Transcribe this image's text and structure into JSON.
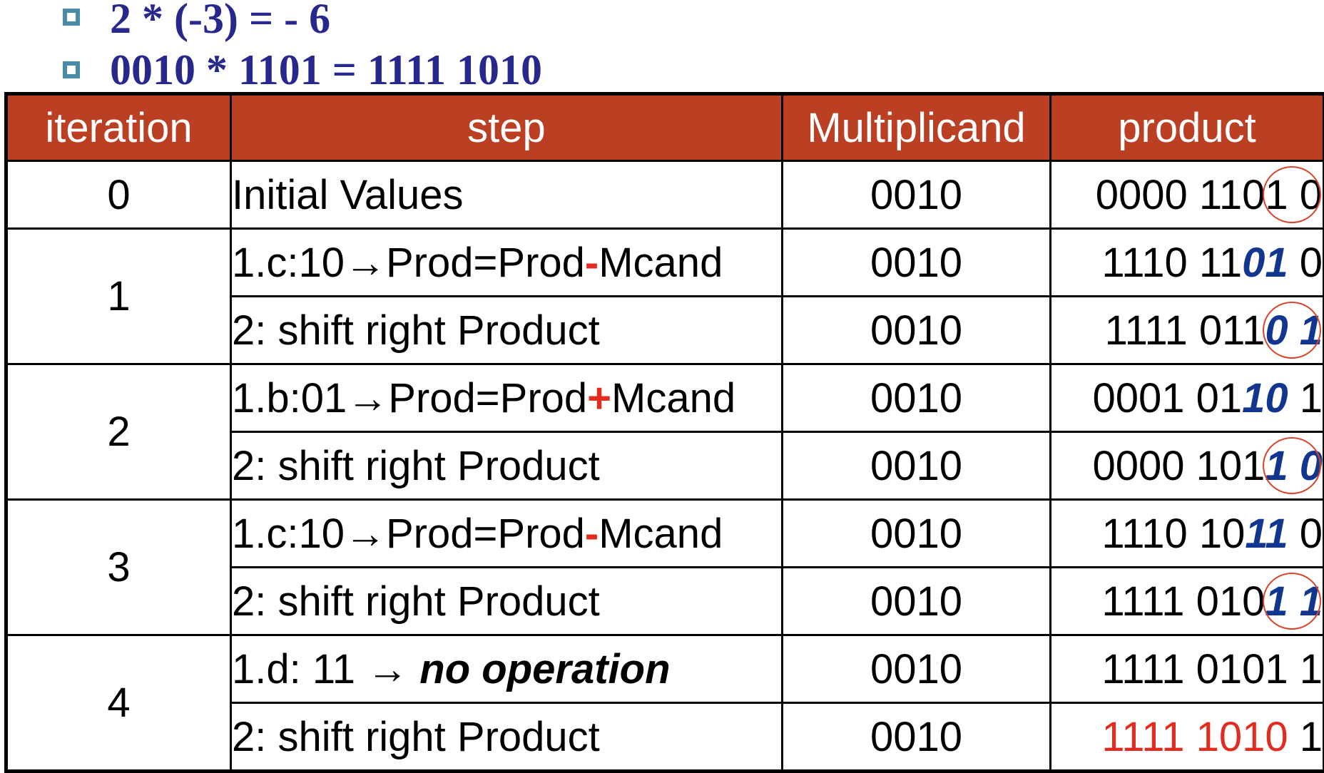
{
  "bullets": [
    "2 * (-3) = - 6",
    "0010 * 1101 = 1111 1010"
  ],
  "table": {
    "headers": [
      "iteration",
      "step",
      "Multiplicand",
      "product"
    ],
    "rows": [
      {
        "iteration": "0",
        "step": "Initial Values",
        "multiplicand": "0010",
        "product": "0000 1101 0"
      },
      {
        "iteration": "1",
        "step_prefix": "1.c:10→Prod=Prod",
        "step_op": "-",
        "step_suffix": "Mcand",
        "multiplicand": "0010",
        "product_prefix": "1110 11",
        "product_bits": "01",
        "product_suffix": " 0"
      },
      {
        "step": "2: shift right Product",
        "multiplicand": "0010",
        "product_prefix": "1111 011",
        "product_bits": "0 1"
      },
      {
        "iteration": "2",
        "step_prefix": "1.b:01→Prod=Prod",
        "step_op": "+",
        "step_suffix": "Mcand",
        "multiplicand": "0010",
        "product_prefix": "0001 01",
        "product_bits": "10",
        "product_suffix": " 1"
      },
      {
        "step": "2: shift right Product",
        "multiplicand": "0010",
        "product_prefix": "0000 101",
        "product_bits": "1 0"
      },
      {
        "iteration": "3",
        "step_prefix": "1.c:10→Prod=Prod",
        "step_op": "-",
        "step_suffix": "Mcand",
        "multiplicand": "0010",
        "product_prefix": "1110 10",
        "product_bits": "11",
        "product_suffix": " 0"
      },
      {
        "step": "2: shift right Product",
        "multiplicand": "0010",
        "product_prefix": "1111 010",
        "product_bits": "1 1"
      },
      {
        "iteration": "4",
        "step_prefix": "1.d: 11 → ",
        "step_emph": "no operation",
        "multiplicand": "0010",
        "product": "1111 0101 1"
      },
      {
        "step": "2: shift right Product",
        "multiplicand": "0010",
        "product_result": "1111 1010",
        "product_suffix": " 1"
      }
    ]
  },
  "colors": {
    "header_bg": "#bb4023",
    "bullet_text": "#27288d",
    "operator_red": "#e32b1f",
    "bits_blue": "#12358f",
    "circle": "#d8432a"
  }
}
